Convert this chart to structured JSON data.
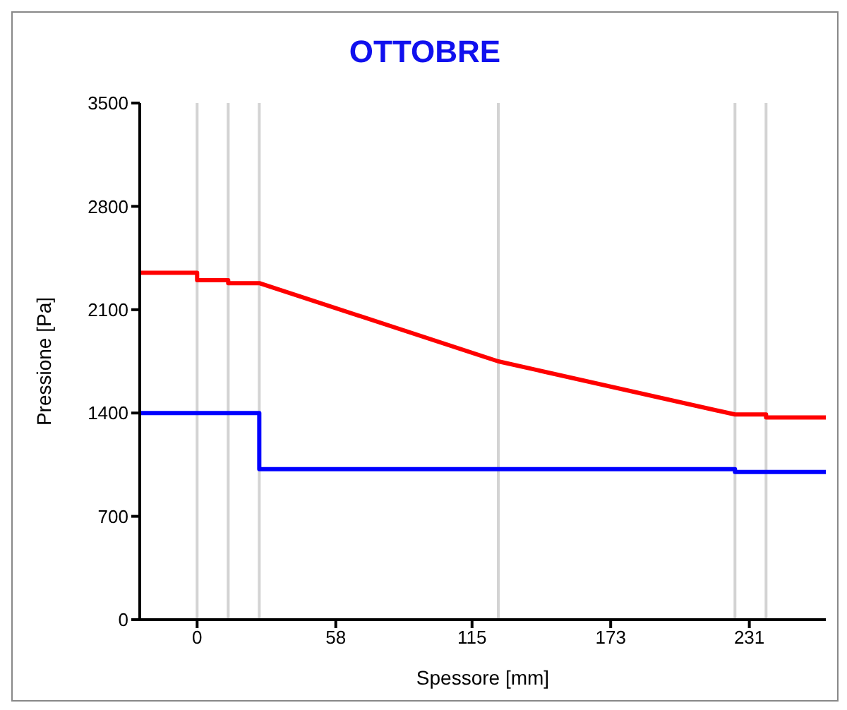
{
  "chart_data": {
    "type": "line",
    "title": "OTTOBRE",
    "xlabel": "Spessore [mm]",
    "ylabel": "Pressione [Pa]",
    "xlim": [
      -24,
      263
    ],
    "xticks": [
      0,
      58,
      115,
      173,
      231
    ],
    "ylim": [
      0,
      3500
    ],
    "yticks": [
      0,
      700,
      1400,
      2100,
      2800,
      3500
    ],
    "grid": false,
    "marker": "none",
    "line_style": "solid",
    "series": [
      {
        "color": "#ff0000",
        "x": [
          -24,
          0,
          0,
          13,
          13,
          26,
          126,
          225,
          238,
          238,
          263
        ],
        "values": [
          2350,
          2350,
          2300,
          2300,
          2280,
          2280,
          1750,
          1390,
          1390,
          1370,
          1370
        ]
      },
      {
        "color": "#0000ff",
        "x": [
          -24,
          26,
          26,
          225,
          225,
          263
        ],
        "values": [
          1400,
          1400,
          1020,
          1020,
          1000,
          1000
        ]
      }
    ],
    "ref_lines": [
      {
        "axis": "x",
        "value": 0,
        "color": "#d3d3d3"
      },
      {
        "axis": "x",
        "value": 13,
        "color": "#d3d3d3"
      },
      {
        "axis": "x",
        "value": 26,
        "color": "#d3d3d3"
      },
      {
        "axis": "x",
        "value": 126,
        "color": "#d3d3d3"
      },
      {
        "axis": "x",
        "value": 225,
        "color": "#d3d3d3"
      },
      {
        "axis": "x",
        "value": 238,
        "color": "#d3d3d3"
      }
    ]
  }
}
